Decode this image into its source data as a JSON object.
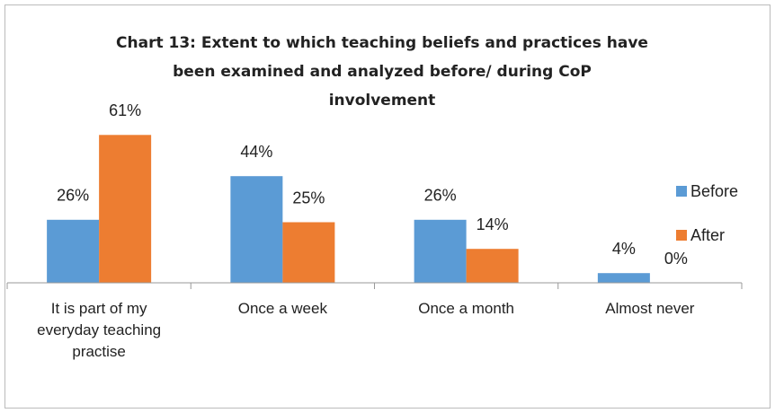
{
  "chart_data": {
    "type": "bar",
    "title": [
      "Chart 13: Extent to which teaching beliefs and practices have",
      "been examined and analyzed before/  during CoP",
      "involvement"
    ],
    "categories": [
      "It is part of my everyday teaching practise",
      "Once a week",
      "Once a month",
      "Almost never"
    ],
    "series": [
      {
        "name": "Before",
        "color": "#5b9bd5",
        "values": [
          26,
          44,
          26,
          4
        ],
        "value_labels": [
          "26%",
          "44%",
          "26%",
          "4%"
        ]
      },
      {
        "name": "After",
        "color": "#ed7d31",
        "values": [
          61,
          25,
          14,
          0
        ],
        "value_labels": [
          "61%",
          "25%",
          "14%",
          "0%"
        ]
      }
    ],
    "legend": "right"
  }
}
